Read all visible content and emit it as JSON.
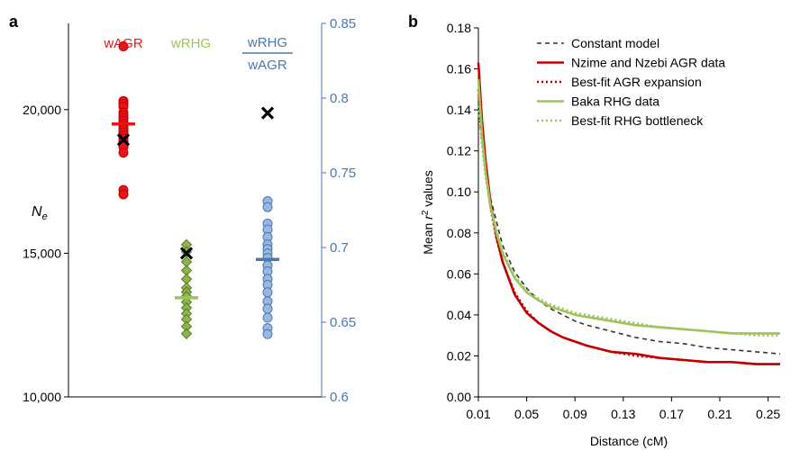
{
  "colors": {
    "agr": "#e8141b",
    "agr_dark": "#c00000",
    "rhg": "#9ec45a",
    "rhg_fill": "#8fb34c",
    "ratio": "#99b8e0",
    "ratio_dark": "#4a78b4",
    "ratio_axis": "#4a78b4",
    "constant": "#333333"
  },
  "chart_data": [
    {
      "panel": "a",
      "type": "scatter",
      "ylabel_left": "Ne",
      "ylim_left": [
        10000,
        23000
      ],
      "yticks_left": [
        10000,
        15000,
        20000
      ],
      "yticks_left_labels": [
        "10,000",
        "15,000",
        "20,000"
      ],
      "ylim_right": [
        0.6,
        0.85
      ],
      "yticks_right": [
        0.6,
        0.65,
        0.7,
        0.75,
        0.8,
        0.85
      ],
      "yticks_right_labels": [
        "0.6",
        "0.65",
        "0.7",
        "0.75",
        "0.8",
        "0.85"
      ],
      "groups": [
        {
          "name": "wAGR",
          "axis": "left",
          "marker": "circle",
          "values": [
            22200,
            20300,
            20200,
            20100,
            19900,
            19800,
            19700,
            19600,
            19500,
            19400,
            19300,
            19200,
            19100,
            19000,
            18900,
            18800,
            18700,
            18500,
            17200,
            17050
          ],
          "mean": 19500,
          "x_mark": 18950
        },
        {
          "name": "wRHG",
          "axis": "left",
          "marker": "diamond",
          "values": [
            15300,
            15050,
            14700,
            14400,
            14100,
            13800,
            13650,
            13500,
            13300,
            13100,
            12900,
            12700,
            12450,
            12200
          ],
          "mean": 13450,
          "x_mark": 15000
        },
        {
          "name_top": "wRHG",
          "name_bottom": "wAGR",
          "axis": "right",
          "marker": "circle",
          "values": [
            0.731,
            0.727,
            0.716,
            0.712,
            0.707,
            0.702,
            0.699,
            0.696,
            0.693,
            0.688,
            0.684,
            0.679,
            0.675,
            0.67,
            0.664,
            0.659,
            0.653,
            0.646,
            0.642
          ],
          "mean": 0.692,
          "x_mark": 0.79
        }
      ]
    },
    {
      "panel": "b",
      "type": "line",
      "xlabel": "Distance (cM)",
      "ylabel_prefix": "Mean ",
      "ylabel_var": "r",
      "ylabel_sup": "2",
      "ylabel_suffix": " values",
      "xlim": [
        0.01,
        0.26
      ],
      "ylim": [
        0,
        0.18
      ],
      "xticks": [
        0.01,
        0.05,
        0.09,
        0.13,
        0.17,
        0.21,
        0.25
      ],
      "xtick_labels": [
        "0.01",
        "0.05",
        "0.09",
        "0.13",
        "0.17",
        "0.21",
        "0.25"
      ],
      "yticks": [
        0,
        0.02,
        0.04,
        0.06,
        0.08,
        0.1,
        0.12,
        0.14,
        0.16,
        0.18
      ],
      "ytick_labels": [
        "0.00",
        "0.02",
        "0.04",
        "0.06",
        "0.08",
        "0.10",
        "0.12",
        "0.14",
        "0.16",
        "0.18"
      ],
      "legend_position": "top-right",
      "series": [
        {
          "name": "Constant model",
          "style": "dashed",
          "color": "#333333",
          "x": [
            0.01,
            0.015,
            0.02,
            0.03,
            0.04,
            0.05,
            0.06,
            0.07,
            0.08,
            0.09,
            0.1,
            0.12,
            0.14,
            0.16,
            0.18,
            0.2,
            0.22,
            0.24,
            0.26
          ],
          "y": [
            0.14,
            0.115,
            0.097,
            0.074,
            0.061,
            0.053,
            0.047,
            0.043,
            0.04,
            0.037,
            0.035,
            0.032,
            0.029,
            0.027,
            0.026,
            0.024,
            0.023,
            0.022,
            0.021
          ]
        },
        {
          "name": "Nzime and Nzebi AGR data",
          "style": "solid",
          "color": "#c00000",
          "x": [
            0.01,
            0.013,
            0.016,
            0.02,
            0.025,
            0.03,
            0.04,
            0.05,
            0.06,
            0.07,
            0.08,
            0.09,
            0.1,
            0.12,
            0.14,
            0.16,
            0.18,
            0.2,
            0.22,
            0.24,
            0.26
          ],
          "y": [
            0.163,
            0.135,
            0.115,
            0.095,
            0.078,
            0.066,
            0.05,
            0.041,
            0.036,
            0.032,
            0.029,
            0.027,
            0.025,
            0.022,
            0.021,
            0.019,
            0.018,
            0.017,
            0.017,
            0.016,
            0.016
          ]
        },
        {
          "name": "Best-fit AGR expansion",
          "style": "dotted",
          "color": "#c00000",
          "x": [
            0.01,
            0.013,
            0.016,
            0.02,
            0.025,
            0.03,
            0.04,
            0.05,
            0.06,
            0.07,
            0.08,
            0.09,
            0.1,
            0.12,
            0.14,
            0.16,
            0.18,
            0.2,
            0.22,
            0.24,
            0.26
          ],
          "y": [
            0.15,
            0.128,
            0.11,
            0.092,
            0.077,
            0.066,
            0.051,
            0.042,
            0.036,
            0.032,
            0.029,
            0.027,
            0.025,
            0.022,
            0.02,
            0.019,
            0.018,
            0.017,
            0.017,
            0.016,
            0.016
          ]
        },
        {
          "name": "Baka RHG data",
          "style": "solid",
          "color": "#9ec45a",
          "x": [
            0.01,
            0.013,
            0.016,
            0.02,
            0.025,
            0.03,
            0.04,
            0.05,
            0.06,
            0.07,
            0.08,
            0.09,
            0.1,
            0.12,
            0.14,
            0.16,
            0.18,
            0.2,
            0.22,
            0.24,
            0.26
          ],
          "y": [
            0.155,
            0.128,
            0.11,
            0.093,
            0.08,
            0.07,
            0.058,
            0.051,
            0.047,
            0.044,
            0.042,
            0.04,
            0.039,
            0.037,
            0.035,
            0.034,
            0.033,
            0.032,
            0.031,
            0.031,
            0.031
          ]
        },
        {
          "name": "Best-fit RHG bottleneck",
          "style": "dotted",
          "color": "#9ec45a",
          "x": [
            0.01,
            0.013,
            0.016,
            0.02,
            0.025,
            0.03,
            0.04,
            0.05,
            0.06,
            0.07,
            0.08,
            0.09,
            0.1,
            0.12,
            0.14,
            0.16,
            0.18,
            0.2,
            0.22,
            0.24,
            0.26
          ],
          "y": [
            0.142,
            0.122,
            0.107,
            0.093,
            0.081,
            0.071,
            0.059,
            0.052,
            0.048,
            0.045,
            0.043,
            0.041,
            0.04,
            0.038,
            0.036,
            0.034,
            0.033,
            0.032,
            0.031,
            0.03,
            0.03
          ]
        }
      ]
    }
  ]
}
